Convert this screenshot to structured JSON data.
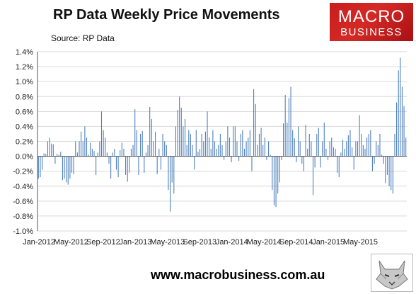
{
  "header": {
    "title": "RP Data Weekly Price Movements",
    "subtitle": "Source: RP Data"
  },
  "logo": {
    "line1": "MACRO",
    "line2": "BUSINESS",
    "color": "#d12a27"
  },
  "footer": {
    "url": "www.macrobusiness.com.au",
    "icon": "wolf-icon"
  },
  "chart_data": {
    "type": "bar",
    "title": "RP Data Weekly Price Movements",
    "subtitle": "Source: RP Data",
    "xlabel": "",
    "ylabel": "",
    "ylim": [
      -1.0,
      1.4
    ],
    "y_ticks": [
      "-1.0%",
      "-0.8%",
      "-0.6%",
      "-0.4%",
      "-0.2%",
      "0.0%",
      "0.2%",
      "0.4%",
      "0.6%",
      "0.8%",
      "1.0%",
      "1.2%",
      "1.4%"
    ],
    "x_ticks": [
      "Jan-2012",
      "May-2012",
      "Sep-2012",
      "Jan-2013",
      "May-2013",
      "Sep-2013",
      "Jan-2014",
      "May-2014",
      "Sep-2014",
      "Jan-2015",
      "May-2015"
    ],
    "grid": true,
    "bar_color": "#4f81bd",
    "legend": "none",
    "values": [
      -0.3,
      -0.28,
      -0.18,
      0.04,
      0.03,
      0.2,
      0.25,
      0.17,
      0.16,
      -0.1,
      0.03,
      0.02,
      0.06,
      -0.32,
      -0.3,
      -0.35,
      -0.38,
      -0.3,
      -0.22,
      -0.24,
      0.2,
      0.05,
      0.2,
      0.33,
      0.2,
      0.4,
      0.25,
      0.02,
      0.18,
      0.1,
      0.07,
      -0.25,
      0.05,
      0.2,
      0.6,
      0.35,
      0.25,
      0.05,
      -0.1,
      -0.3,
      0.05,
      0.1,
      -0.18,
      -0.28,
      0.08,
      0.18,
      0.1,
      -0.25,
      -0.34,
      -0.22,
      0.1,
      0.15,
      0.63,
      0.35,
      -0.25,
      0.3,
      0.34,
      -0.22,
      0.05,
      0.15,
      0.66,
      0.5,
      0.2,
      0.33,
      -0.24,
      0.1,
      -0.18,
      0.3,
      0.2,
      0.15,
      -0.45,
      -0.74,
      -0.35,
      -0.5,
      0.4,
      0.62,
      0.8,
      0.65,
      0.4,
      0.5,
      0.15,
      0.35,
      0.3,
      0.15,
      -0.18,
      0.35,
      0.06,
      0.1,
      0.3,
      0.2,
      0.33,
      0.6,
      0.25,
      0.1,
      0.35,
      0.2,
      0.1,
      0.15,
      0.3,
      0.15,
      -0.05,
      0.2,
      0.4,
      0.25,
      -0.08,
      0.4,
      0.4,
      0.2,
      -0.06,
      0.3,
      0.35,
      0.1,
      0.2,
      0.25,
      0.35,
      -0.2,
      0.9,
      0.7,
      0.15,
      0.3,
      0.38,
      0.15,
      0.25,
      -0.05,
      0.2,
      0.02,
      -0.45,
      -0.66,
      -0.68,
      -0.5,
      -0.35,
      -0.05,
      0.44,
      0.82,
      0.45,
      0.78,
      0.93,
      0.35,
      0.24,
      -0.08,
      0.4,
      0.2,
      -0.1,
      -0.2,
      0.42,
      0.1,
      0.3,
      0.2,
      -0.52,
      -0.15,
      0.3,
      0.38,
      -0.15,
      0.2,
      0.45,
      0.1,
      -0.05,
      0.2,
      0.25,
      0.12,
      0.1,
      -0.22,
      -0.28,
      0.05,
      0.22,
      0.1,
      0.2,
      0.28,
      0.35,
      0.12,
      -0.18,
      0.2,
      0.2,
      0.55,
      0.3,
      0.15,
      0.1,
      0.25,
      0.3,
      0.35,
      -0.2,
      -0.1,
      0.2,
      0.15,
      0.3,
      0.02,
      -0.1,
      -0.36,
      -0.25,
      -0.4,
      -0.45,
      -0.5,
      0.3,
      0.72,
      1.15,
      1.32,
      0.93,
      0.67,
      0.25
    ]
  }
}
